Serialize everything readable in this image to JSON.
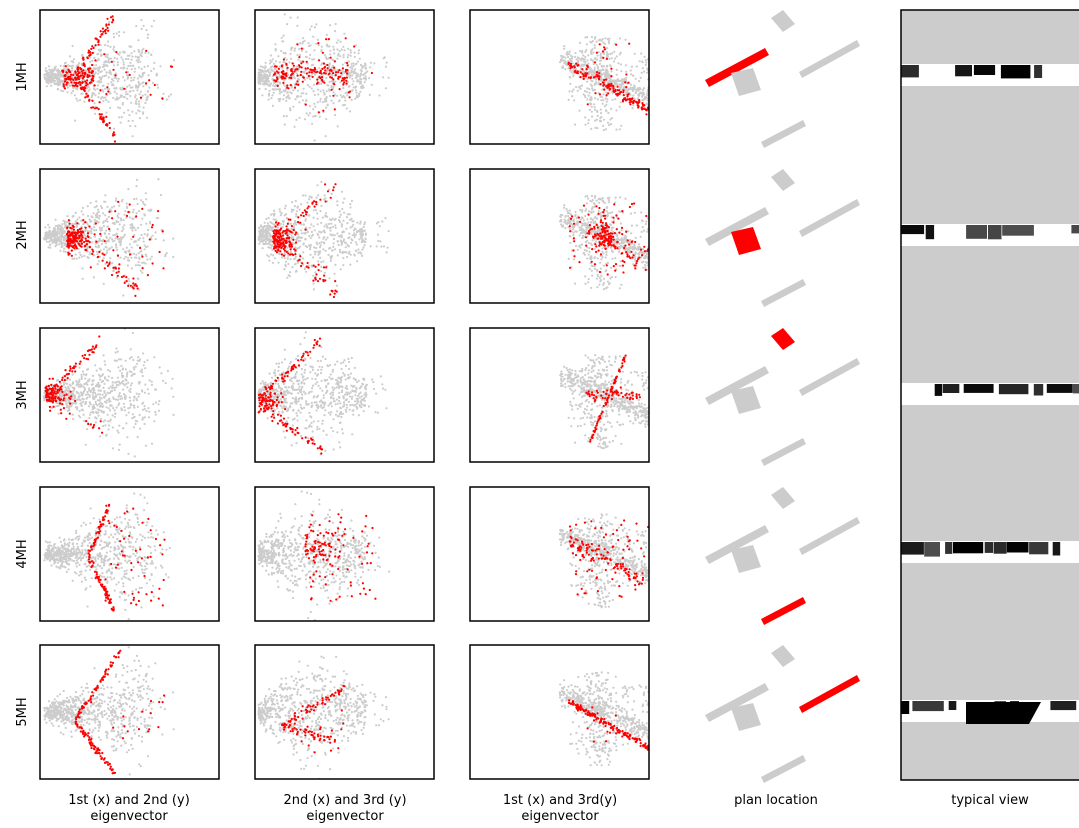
{
  "chart_data": {
    "type": "scatter",
    "grid": false,
    "axes_ticks": "none",
    "colors": {
      "background_points": "#cccccc",
      "highlight_points": "#ff0000",
      "plan_background": "#cccccc",
      "view_sky": "#cccccc",
      "view_band": "#ffffff",
      "frame": "#000000"
    },
    "row_labels": [
      "1MH",
      "2MH",
      "3MH",
      "4MH",
      "5MH"
    ],
    "column_labels": [
      "1st (x) and 2nd (y)\neigenvector",
      "2nd (x) and 3rd (y)\neigenvector",
      "1st (x) and 3rd(y)\neigenvector",
      "plan location",
      "typical view"
    ],
    "panel_types": [
      "scatter",
      "scatter",
      "scatter",
      "plan",
      "view"
    ],
    "highlight_shape_by_row": [
      {
        "col1": "v-arms",
        "col2": "horizontal-cluster",
        "col3": "diagonal-down"
      },
      {
        "col1": "dense-left-cluster",
        "col2": "dense-left-cluster",
        "col3": "cross"
      },
      {
        "col1": "v-arms",
        "col2": "v-arms",
        "col3": "steep-cross"
      },
      {
        "col1": "v-arms-spread",
        "col2": "spread-cluster",
        "col3": "diagonal-spread"
      },
      {
        "col1": "wide-v-arms",
        "col2": "narrow-v",
        "col3": "long-diagonal"
      }
    ],
    "plan_highlighted_building_by_row": [
      "west-long-block",
      "south-central-block",
      "north-square-block",
      "south-small-block",
      "east-long-block"
    ]
  },
  "labels": {
    "rows": [
      "1MH",
      "2MH",
      "3MH",
      "4MH",
      "5MH"
    ],
    "col1": {
      "line1": "1st (x) and 2nd (y)",
      "line2": "eigenvector"
    },
    "col2": {
      "line1": "2nd (x) and 3rd (y)",
      "line2": "eigenvector"
    },
    "col3": {
      "line1": "1st (x) and 3rd(y)",
      "line2": "eigenvector"
    },
    "col4": {
      "line1": "plan location"
    },
    "col5": {
      "line1": "typical view"
    }
  }
}
